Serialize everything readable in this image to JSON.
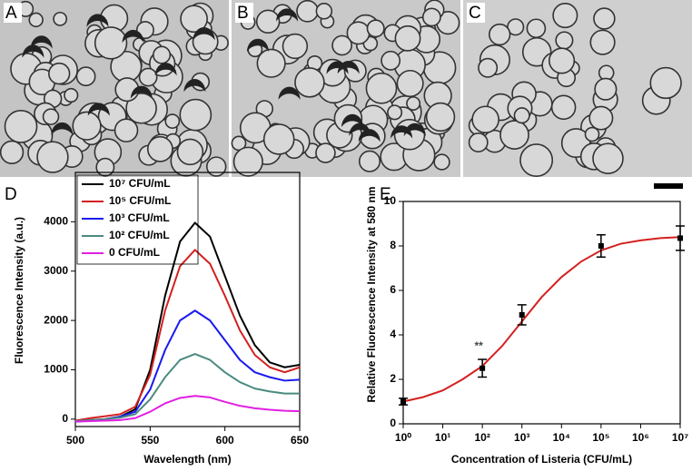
{
  "panels": [
    {
      "label": "A"
    },
    {
      "label": "B"
    },
    {
      "label": "C"
    }
  ],
  "chart_data": [
    {
      "type": "line",
      "panel_label": "D",
      "x_label": "Wavelength (nm)",
      "y_label": "Fluorescence Intensity (a.u.)",
      "x": [
        500,
        510,
        520,
        530,
        540,
        550,
        560,
        570,
        580,
        590,
        600,
        610,
        620,
        630,
        640,
        650
      ],
      "xlim": [
        500,
        650
      ],
      "xticks": [
        500,
        550,
        600,
        650
      ],
      "ylim": [
        -150,
        5000
      ],
      "yticks": [
        0,
        1000,
        2000,
        3000,
        4000
      ],
      "legend": "upper left",
      "series": [
        {
          "name": "10⁷ CFU/mL",
          "color": "#000000",
          "values": [
            -50,
            -30,
            0,
            50,
            200,
            1000,
            2500,
            3600,
            3980,
            3700,
            2900,
            2100,
            1500,
            1150,
            1050,
            1100
          ]
        },
        {
          "name": "10⁵ CFU/mL",
          "color": "#d42020",
          "values": [
            -30,
            20,
            60,
            100,
            250,
            900,
            2200,
            3100,
            3430,
            3150,
            2500,
            1800,
            1300,
            1050,
            950,
            1050
          ]
        },
        {
          "name": "10³ CFU/mL",
          "color": "#1a1aee",
          "values": [
            -50,
            -20,
            0,
            50,
            150,
            600,
            1400,
            2000,
            2200,
            2000,
            1600,
            1200,
            950,
            850,
            780,
            800
          ]
        },
        {
          "name": "10² CFU/mL",
          "color": "#4a8a80",
          "values": [
            -40,
            -20,
            0,
            30,
            100,
            400,
            850,
            1200,
            1320,
            1200,
            950,
            750,
            620,
            560,
            520,
            520
          ]
        },
        {
          "name": "0 CFU/mL",
          "color": "#e020e0",
          "values": [
            -50,
            -40,
            -30,
            -20,
            20,
            150,
            320,
            430,
            470,
            440,
            350,
            270,
            220,
            190,
            170,
            160
          ]
        }
      ]
    },
    {
      "type": "scatter",
      "panel_label": "E",
      "x_label": "Concentration of Listeria (CFU/mL)",
      "y_label": "Relative Fluorescence Intensity at 580 nm",
      "x_scale": "log",
      "xlim": [
        1,
        10000000
      ],
      "xticks": [
        {
          "value": 1,
          "label": "10⁰"
        },
        {
          "value": 10,
          "label": "10¹"
        },
        {
          "value": 100,
          "label": "10²"
        },
        {
          "value": 1000,
          "label": "10³"
        },
        {
          "value": 10000,
          "label": "10⁴"
        },
        {
          "value": 100000,
          "label": "10⁵"
        },
        {
          "value": 1000000,
          "label": "10⁶"
        },
        {
          "value": 10000000,
          "label": "10⁷"
        }
      ],
      "ylim": [
        0,
        10
      ],
      "yticks": [
        0,
        2,
        4,
        6,
        8,
        10
      ],
      "x_points": [
        1,
        100,
        1000,
        100000,
        10000000
      ],
      "values": [
        1.0,
        2.5,
        4.9,
        8.0,
        8.35
      ],
      "errors": [
        0.15,
        0.4,
        0.45,
        0.5,
        0.55
      ],
      "color": "#000000",
      "annotations": [
        "**"
      ],
      "fit": {
        "color": "#d42020",
        "x": [
          1,
          3.162,
          10,
          31.62,
          100,
          316.2,
          1000,
          3162,
          10000,
          31623,
          100000,
          316228,
          1000000,
          3162278,
          10000000
        ],
        "values": [
          1.0,
          1.2,
          1.5,
          2.0,
          2.6,
          3.5,
          4.6,
          5.7,
          6.6,
          7.3,
          7.8,
          8.1,
          8.25,
          8.35,
          8.4
        ]
      }
    }
  ]
}
